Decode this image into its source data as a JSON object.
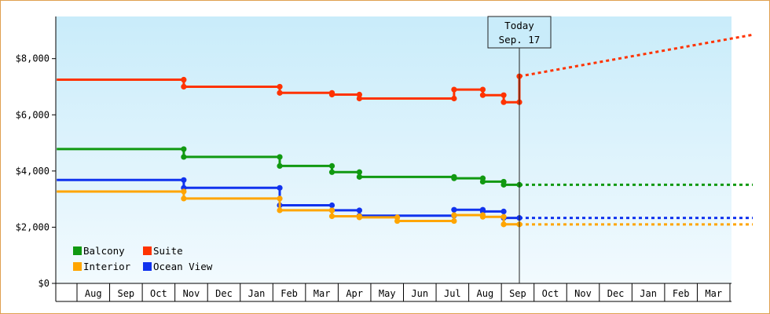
{
  "chart_data": {
    "type": "line",
    "title": "",
    "xlabel": "",
    "ylabel": "",
    "ylim": [
      0,
      9500
    ],
    "y_ticks": [
      0,
      2000,
      4000,
      6000,
      8000
    ],
    "y_tick_labels": [
      "$0",
      "$2,000",
      "$4,000",
      "$6,000",
      "$8,000"
    ],
    "month_labels": [
      "Aug",
      "Sep",
      "Oct",
      "Nov",
      "Dec",
      "Jan",
      "Feb",
      "Mar",
      "Apr",
      "May",
      "Jun",
      "Jul",
      "Aug",
      "Sep",
      "Oct",
      "Nov",
      "Dec",
      "Jan",
      "Feb",
      "Mar"
    ],
    "x_unit": "months since the first month boundary (Jul/Aug boundary = 0)",
    "today": {
      "line1": "Today",
      "line2": "Sep. 17",
      "x": 13.55
    },
    "grid": false,
    "legend_position": "bottom-left",
    "background_gradient": [
      "#c9ecfa",
      "#f2fafe"
    ],
    "series": [
      {
        "name": "Suite",
        "color": "#ff3300",
        "points": [
          [
            -0.62,
            7250
          ],
          [
            3.27,
            7250
          ],
          [
            3.27,
            7000
          ],
          [
            6.21,
            7000
          ],
          [
            6.21,
            6780
          ],
          [
            7.81,
            6780
          ],
          [
            7.81,
            6720
          ],
          [
            8.65,
            6720
          ],
          [
            8.65,
            6580
          ],
          [
            11.55,
            6580
          ],
          [
            11.55,
            6900
          ],
          [
            12.43,
            6900
          ],
          [
            12.43,
            6700
          ],
          [
            13.07,
            6700
          ],
          [
            13.07,
            6450
          ],
          [
            13.55,
            6450
          ],
          [
            13.55,
            7370
          ]
        ],
        "forecast": [
          [
            13.55,
            7370
          ],
          [
            20.7,
            8850
          ]
        ]
      },
      {
        "name": "Balcony",
        "color": "#119911",
        "points": [
          [
            -0.62,
            4780
          ],
          [
            3.27,
            4780
          ],
          [
            3.27,
            4500
          ],
          [
            6.21,
            4500
          ],
          [
            6.21,
            4180
          ],
          [
            7.81,
            4180
          ],
          [
            7.81,
            3960
          ],
          [
            8.65,
            3960
          ],
          [
            8.65,
            3790
          ],
          [
            11.55,
            3790
          ],
          [
            11.55,
            3740
          ],
          [
            12.43,
            3740
          ],
          [
            12.43,
            3620
          ],
          [
            13.07,
            3620
          ],
          [
            13.07,
            3510
          ],
          [
            13.55,
            3510
          ]
        ],
        "forecast": [
          [
            13.55,
            3510
          ],
          [
            20.7,
            3510
          ]
        ]
      },
      {
        "name": "Ocean View",
        "color": "#1133ee",
        "points": [
          [
            -0.62,
            3680
          ],
          [
            3.27,
            3680
          ],
          [
            3.27,
            3400
          ],
          [
            6.21,
            3400
          ],
          [
            6.21,
            2780
          ],
          [
            7.81,
            2780
          ],
          [
            7.81,
            2600
          ],
          [
            8.65,
            2600
          ],
          [
            8.65,
            2410
          ],
          [
            11.55,
            2410
          ],
          [
            11.55,
            2620
          ],
          [
            12.43,
            2620
          ],
          [
            12.43,
            2560
          ],
          [
            13.07,
            2560
          ],
          [
            13.07,
            2330
          ],
          [
            13.55,
            2330
          ]
        ],
        "forecast": [
          [
            13.55,
            2330
          ],
          [
            20.7,
            2330
          ]
        ]
      },
      {
        "name": "Interior",
        "color": "#ffa500",
        "points": [
          [
            -0.62,
            3270
          ],
          [
            3.27,
            3270
          ],
          [
            3.27,
            3020
          ],
          [
            6.21,
            3020
          ],
          [
            6.21,
            2600
          ],
          [
            7.81,
            2600
          ],
          [
            7.81,
            2390
          ],
          [
            8.65,
            2390
          ],
          [
            8.65,
            2350
          ],
          [
            9.81,
            2350
          ],
          [
            9.81,
            2220
          ],
          [
            11.55,
            2220
          ],
          [
            11.55,
            2430
          ],
          [
            12.43,
            2430
          ],
          [
            12.43,
            2370
          ],
          [
            13.07,
            2370
          ],
          [
            13.07,
            2100
          ],
          [
            13.55,
            2100
          ]
        ],
        "forecast": [
          [
            13.55,
            2100
          ],
          [
            20.7,
            2100
          ]
        ]
      }
    ],
    "legend": [
      {
        "name": "Balcony",
        "color": "#119911"
      },
      {
        "name": "Suite",
        "color": "#ff3300"
      },
      {
        "name": "Interior",
        "color": "#ffa500"
      },
      {
        "name": "Ocean View",
        "color": "#1133ee"
      }
    ]
  }
}
